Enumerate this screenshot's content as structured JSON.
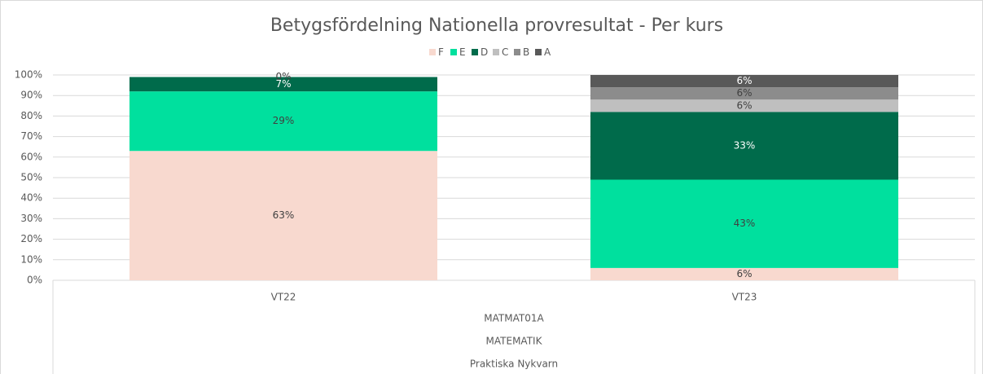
{
  "chart_data": {
    "type": "stacked_bar",
    "title": "Betygsfördelning Nationella provresultat - Per kurs",
    "categories": [
      "VT22",
      "VT23"
    ],
    "x_group_labels": [
      "MATMAT01A",
      "MATEMATIK",
      "Praktiska Nykvarn"
    ],
    "series": [
      {
        "name": "F",
        "color": "#f8d9cf",
        "values": [
          63,
          6
        ],
        "value_labels": [
          "63%",
          "6%"
        ]
      },
      {
        "name": "E",
        "color": "#00e09e",
        "values": [
          29,
          43
        ],
        "value_labels": [
          "29%",
          "43%"
        ]
      },
      {
        "name": "D",
        "color": "#006b4b",
        "values": [
          7,
          33
        ],
        "value_labels": [
          "7%",
          "33%"
        ]
      },
      {
        "name": "C",
        "color": "#bfbfbf",
        "values": [
          0,
          6
        ],
        "value_labels": [
          "0%",
          "6%"
        ]
      },
      {
        "name": "B",
        "color": "#8c8c8c",
        "values": [
          null,
          6
        ],
        "value_labels": [
          null,
          "6%"
        ]
      },
      {
        "name": "A",
        "color": "#595959",
        "values": [
          null,
          6
        ],
        "value_labels": [
          null,
          "6%"
        ]
      }
    ],
    "ylim": [
      0,
      100
    ],
    "yticks": [
      {
        "value": 0,
        "label": "0%"
      },
      {
        "value": 10,
        "label": "10%"
      },
      {
        "value": 20,
        "label": "20%"
      },
      {
        "value": 30,
        "label": "30%"
      },
      {
        "value": 40,
        "label": "40%"
      },
      {
        "value": 50,
        "label": "50%"
      },
      {
        "value": 60,
        "label": "60%"
      },
      {
        "value": 70,
        "label": "70%"
      },
      {
        "value": 80,
        "label": "80%"
      },
      {
        "value": 90,
        "label": "90%"
      },
      {
        "value": 100,
        "label": "100%"
      }
    ],
    "grid": true,
    "legend": "top"
  }
}
